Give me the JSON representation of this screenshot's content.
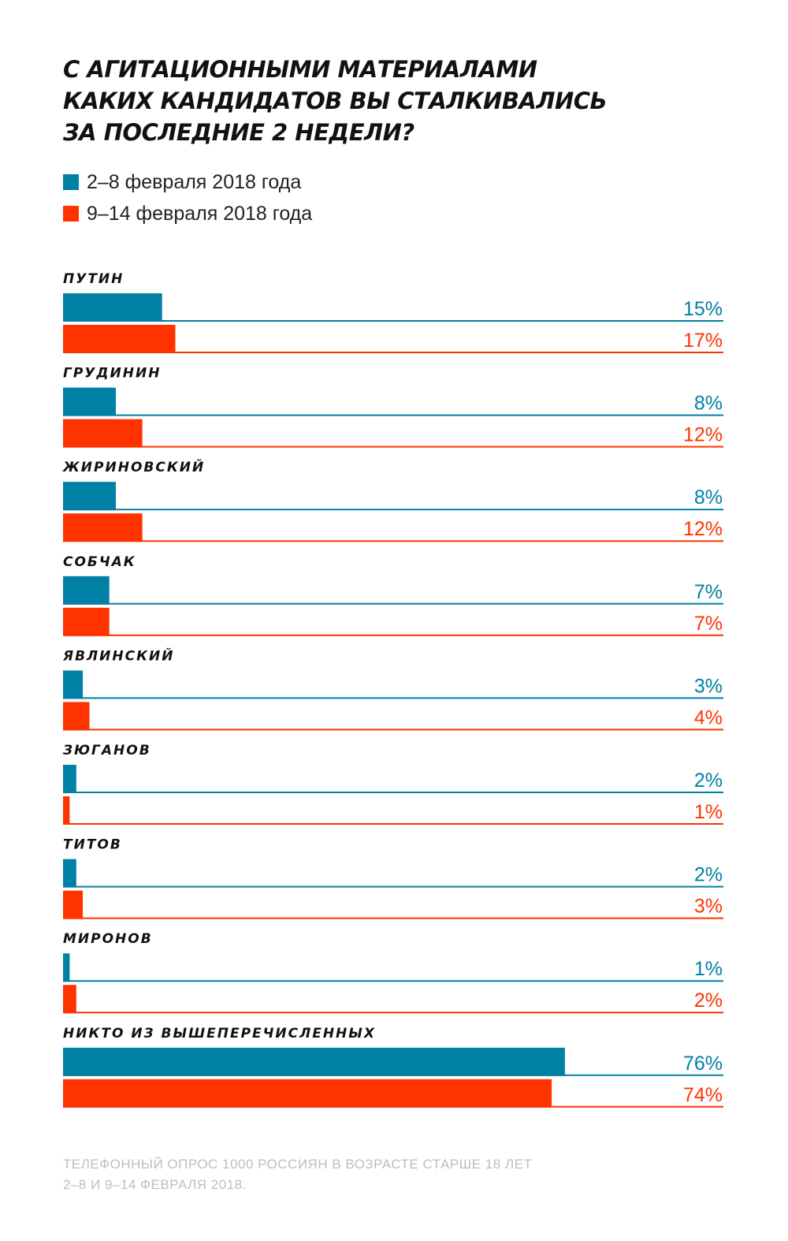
{
  "title_lines": [
    "С АГИТАЦИОННЫМИ МАТЕРИАЛАМИ",
    "КАКИХ КАНДИДАТОВ ВЫ СТАЛКИВАЛИСЬ",
    "ЗА ПОСЛЕДНИЕ 2 НЕДЕЛИ?"
  ],
  "footnote_lines": [
    "ТЕЛЕФОННЫЙ ОПРОС 1000 РОССИЯН В ВОЗРАСТЕ СТАРШЕ 18 ЛЕТ",
    "2–8 И 9–14 ФЕВРАЛЯ 2018."
  ],
  "colors": {
    "series1": "#0080a5",
    "series2": "#ff3300",
    "category_label": "#111111",
    "footnote": "#bdbdbd"
  },
  "chart_data": {
    "type": "bar",
    "orientation": "horizontal",
    "title": "С АГИТАЦИОННЫМИ МАТЕРИАЛАМИ КАКИХ КАНДИДАТОВ ВЫ СТАЛКИВАЛИСЬ ЗА ПОСЛЕДНИЕ 2 НЕДЕЛИ?",
    "categories": [
      "ПУТИН",
      "ГРУДИНИН",
      "ЖИРИНОВСКИЙ",
      "СОБЧАК",
      "ЯВЛИНСКИЙ",
      "ЗЮГАНОВ",
      "ТИТОВ",
      "МИРОНОВ",
      "НИКТО ИЗ ВЫШЕПЕРЕЧИСЛЕННЫХ"
    ],
    "series": [
      {
        "name": "2–8 февраля 2018 года",
        "color": "#0080a5",
        "values": [
          15,
          8,
          8,
          7,
          3,
          2,
          2,
          1,
          76
        ],
        "labels": [
          "15%",
          "8%",
          "8%",
          "7%",
          "3%",
          "2%",
          "2%",
          "1%",
          "76%"
        ]
      },
      {
        "name": "9–14 февраля 2018 года",
        "color": "#ff3300",
        "values": [
          17,
          12,
          12,
          7,
          4,
          1,
          3,
          2,
          74
        ],
        "labels": [
          "17%",
          "12%",
          "12%",
          "7%",
          "4%",
          "1%",
          "3%",
          "2%",
          "74%"
        ]
      }
    ],
    "unit": "%",
    "xlim": [
      0,
      100
    ],
    "grid": false,
    "legend_position": "top-left"
  }
}
